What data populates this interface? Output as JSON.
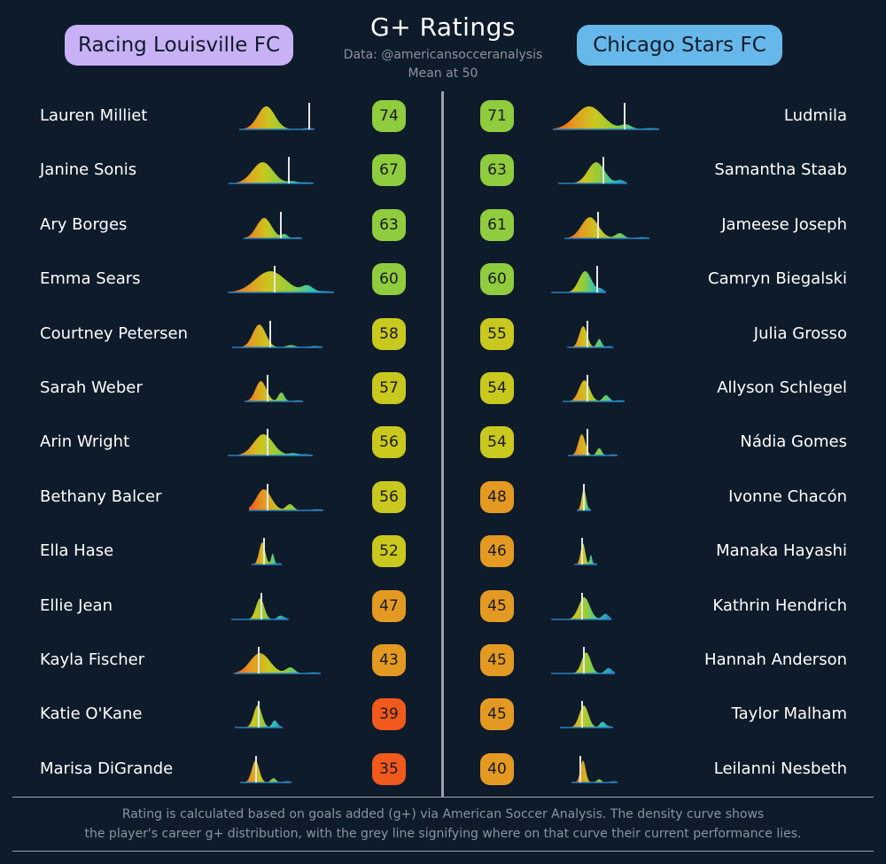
{
  "header": {
    "title": "G+ Ratings",
    "subtitle_line1": "Data: @americansocceranalysis",
    "subtitle_line2": "Mean at 50"
  },
  "teams": {
    "left": {
      "name": "Racing Louisville FC",
      "color": "#c9b1f5"
    },
    "right": {
      "name": "Chicago Stars FC",
      "color": "#66b8ea"
    }
  },
  "footnote": {
    "line1": "Rating is calculated based on goals added (g+) via American Soccer Analysis. The density curve shows",
    "line2": "the player's career g+ distribution, with the grey line signifying where on that curve their current performance lies."
  },
  "chart_data": {
    "type": "table",
    "scale": {
      "mean": 50
    },
    "rating_colors": [
      {
        "min": 60,
        "color": "#8fcc3e"
      },
      {
        "min": 52,
        "color": "#c9c81f"
      },
      {
        "min": 40,
        "color": "#e49a22"
      },
      {
        "min": 0,
        "color": "#f2591d"
      }
    ],
    "left_players": [
      {
        "name": "Lauren Milliet",
        "rating": 74
      },
      {
        "name": "Janine Sonis",
        "rating": 67
      },
      {
        "name": "Ary Borges",
        "rating": 63
      },
      {
        "name": "Emma Sears",
        "rating": 60
      },
      {
        "name": "Courtney Petersen",
        "rating": 58
      },
      {
        "name": "Sarah Weber",
        "rating": 57
      },
      {
        "name": "Arin Wright",
        "rating": 56
      },
      {
        "name": "Bethany Balcer",
        "rating": 56
      },
      {
        "name": "Ella Hase",
        "rating": 52
      },
      {
        "name": "Ellie Jean",
        "rating": 47
      },
      {
        "name": "Kayla Fischer",
        "rating": 43
      },
      {
        "name": "Katie O'Kane",
        "rating": 39
      },
      {
        "name": "Marisa DiGrande",
        "rating": 35
      }
    ],
    "right_players": [
      {
        "name": "Ludmila",
        "rating": 71
      },
      {
        "name": "Samantha Staab",
        "rating": 63
      },
      {
        "name": "Jameese Joseph",
        "rating": 61
      },
      {
        "name": "Camryn Biegalski",
        "rating": 60
      },
      {
        "name": "Julia Grosso",
        "rating": 55
      },
      {
        "name": "Allyson Schlegel",
        "rating": 54
      },
      {
        "name": "Nádia Gomes",
        "rating": 54
      },
      {
        "name": "Ivonne Chacón",
        "rating": 48
      },
      {
        "name": "Manaka Hayashi",
        "rating": 46
      },
      {
        "name": "Kathrin Hendrich",
        "rating": 45
      },
      {
        "name": "Hannah Anderson",
        "rating": 45
      },
      {
        "name": "Taylor Malham",
        "rating": 45
      },
      {
        "name": "Leilanni Nesbeth",
        "rating": 40
      }
    ],
    "density_gradient": [
      "#f2591d",
      "#e49a22",
      "#c9c81f",
      "#8fcc3e",
      "#2ec6b6",
      "#2a7fc1"
    ],
    "current_line_color": "#e6e6e6"
  }
}
